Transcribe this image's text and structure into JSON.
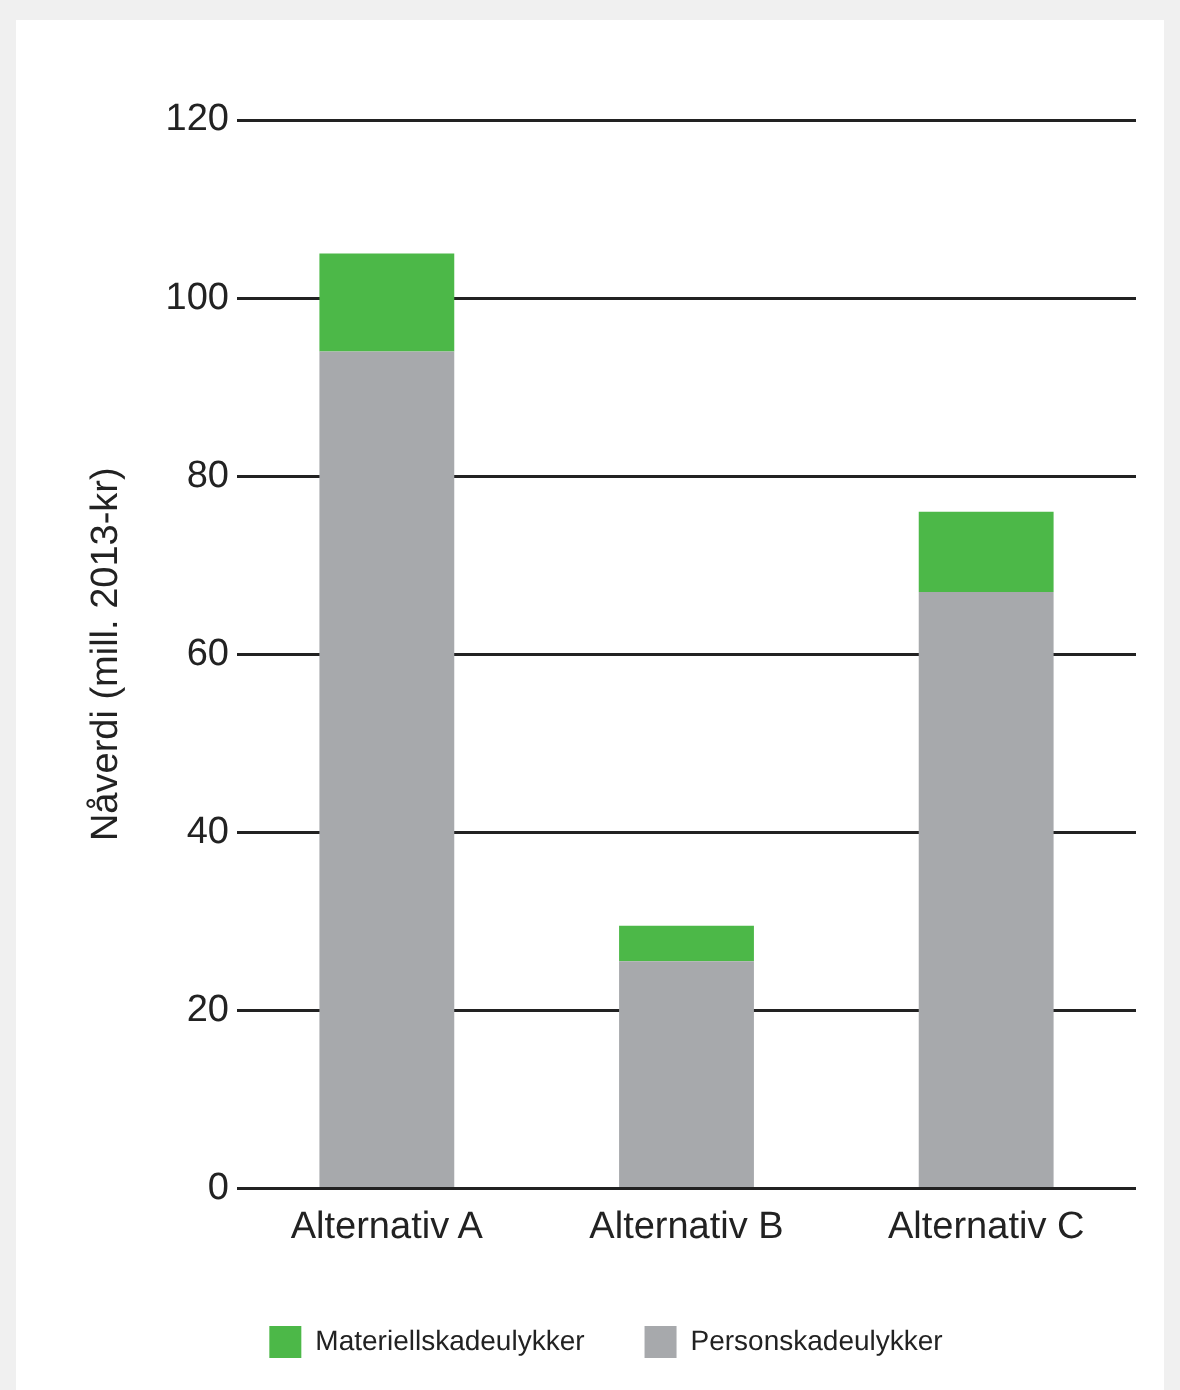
{
  "chart_data": {
    "type": "bar",
    "ylabel": "Nåverdi (mill. 2013-kr)",
    "categories": [
      "Alternativ A",
      "Alternativ B",
      "Alternativ C"
    ],
    "series": [
      {
        "name": "Personskadeulykker",
        "color": "#a7a9ac",
        "values": [
          94,
          25.5,
          67
        ]
      },
      {
        "name": "Materiellskadeulykker",
        "color": "#4cb848",
        "values": [
          11,
          4,
          9
        ]
      }
    ],
    "stacked": true,
    "ylim": [
      0,
      120
    ],
    "yticks": [
      0,
      20,
      40,
      60,
      80,
      100,
      120
    ],
    "grid": "y",
    "legend": "bottom"
  }
}
